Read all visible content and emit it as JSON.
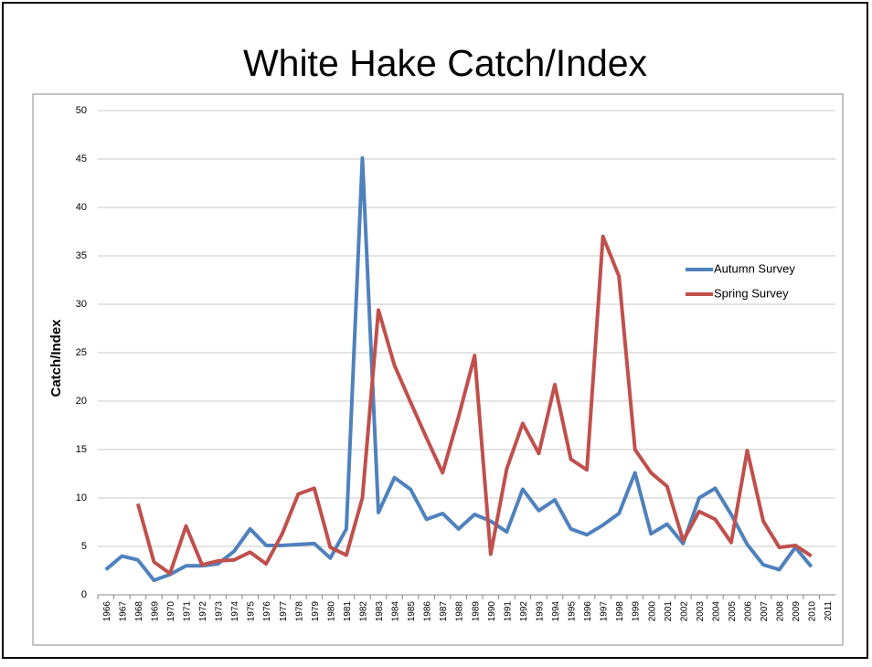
{
  "chart_data": {
    "type": "line",
    "title": "White Hake Catch/Index",
    "y_label": "Catch/Index",
    "categories": [
      "1966",
      "1967",
      "1968",
      "1969",
      "1970",
      "1971",
      "1972",
      "1973",
      "1974",
      "1975",
      "1976",
      "1977",
      "1978",
      "1979",
      "1980",
      "1981",
      "1982",
      "1983",
      "1984",
      "1985",
      "1986",
      "1987",
      "1988",
      "1989",
      "1990",
      "1991",
      "1992",
      "1993",
      "1994",
      "1995",
      "1996",
      "1997",
      "1998",
      "1999",
      "2000",
      "2001",
      "2002",
      "2003",
      "2004",
      "2005",
      "2006",
      "2007",
      "2008",
      "2009",
      "2010",
      "2011"
    ],
    "series": [
      {
        "name": "Autumn Survey",
        "color": "#4f81bd",
        "values": [
          2.6,
          4.0,
          3.6,
          1.5,
          2.1,
          3.0,
          3.0,
          3.2,
          4.5,
          6.8,
          5.1,
          5.1,
          5.2,
          5.3,
          3.8,
          6.8,
          45.1,
          8.5,
          12.1,
          10.9,
          7.8,
          8.4,
          6.8,
          8.3,
          7.6,
          6.5,
          10.9,
          8.7,
          9.8,
          6.8,
          6.2,
          7.2,
          8.4,
          12.6,
          6.3,
          7.3,
          5.3,
          10.0,
          11.0,
          8.3,
          5.2,
          3.1,
          2.6,
          4.9,
          2.9,
          null
        ]
      },
      {
        "name": "Spring Survey",
        "color": "#c0504d",
        "values": [
          null,
          null,
          9.4,
          3.4,
          2.2,
          7.1,
          3.1,
          3.5,
          3.6,
          4.4,
          3.2,
          6.3,
          10.4,
          11.0,
          4.9,
          4.1,
          10.0,
          29.4,
          23.7,
          19.9,
          16.2,
          12.6,
          18.4,
          24.7,
          4.2,
          13.0,
          17.7,
          14.6,
          21.7,
          14.0,
          12.9,
          37.0,
          32.9,
          15.0,
          12.6,
          11.2,
          5.6,
          8.6,
          7.8,
          5.4,
          14.9,
          7.6,
          4.9,
          5.1,
          4.0,
          null
        ]
      }
    ],
    "ylim": [
      0,
      50
    ],
    "yticks": [
      0,
      5,
      10,
      15,
      20,
      25,
      30,
      35,
      40,
      45,
      50
    ],
    "grid": true,
    "legend": "right"
  }
}
